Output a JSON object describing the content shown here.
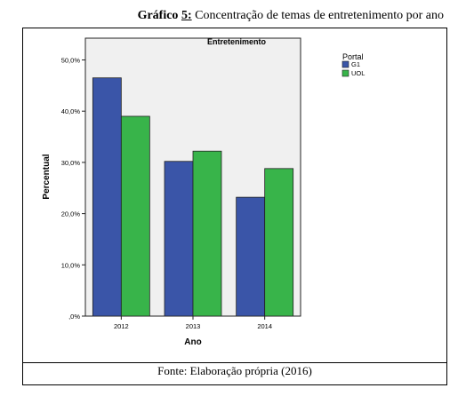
{
  "caption": {
    "lead": "Gráfico",
    "number": "5:",
    "text": "Concentração de temas de entretenimento por ano"
  },
  "source_note": "Fonte: Elaboração própria (2016)",
  "colors": {
    "plot_bg": "#f0f0f0",
    "G1": "#3a55a8",
    "UOL": "#38b44a"
  },
  "chart_data": {
    "type": "bar",
    "title": "Entretenimento",
    "xlabel": "Ano",
    "ylabel": "Percentual",
    "categories": [
      "2012",
      "2013",
      "2014"
    ],
    "ylim": [
      0,
      50
    ],
    "yticks": [
      0,
      10,
      20,
      30,
      40,
      50
    ],
    "ytick_labels": [
      ",0%",
      "10,0%",
      "20,0%",
      "30,0%",
      "40,0%",
      "50,0%"
    ],
    "grid": false,
    "legend": {
      "title": "Portal",
      "position": "right"
    },
    "series": [
      {
        "name": "G1",
        "values": [
          46.5,
          30.2,
          23.2
        ]
      },
      {
        "name": "UOL",
        "values": [
          39.0,
          32.2,
          28.8
        ]
      }
    ]
  }
}
